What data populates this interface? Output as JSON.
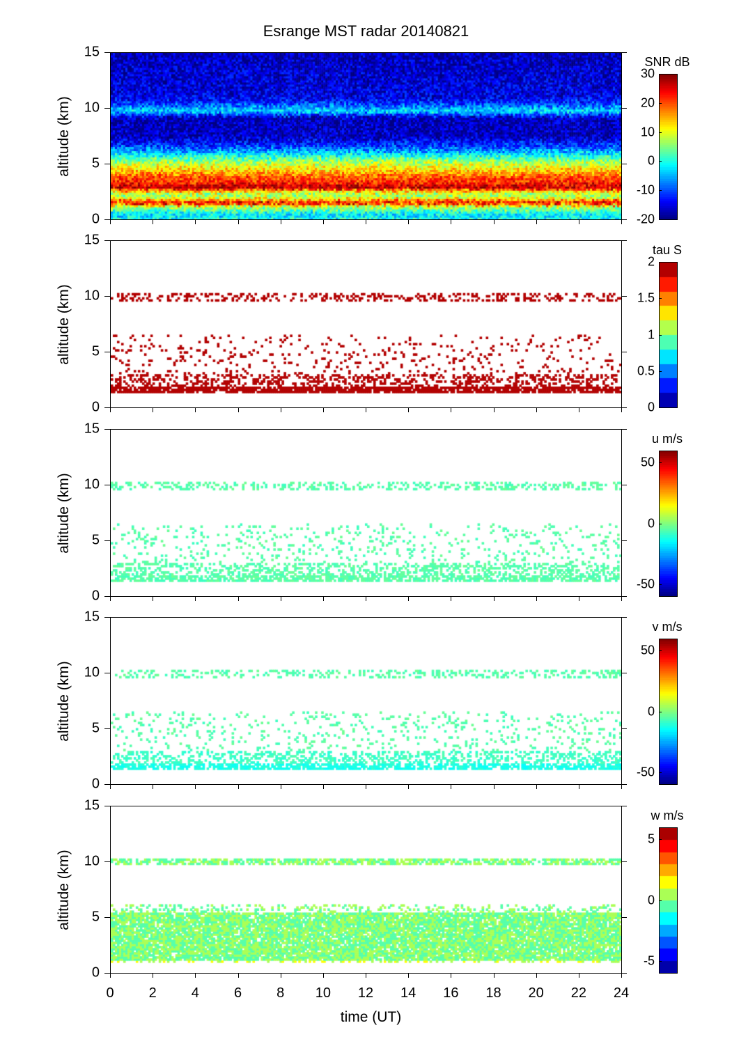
{
  "chart_data": {
    "type": "heatmap",
    "title": "Esrange MST radar 20140821",
    "xlabel": "time (UT)",
    "ylabel": "altitude (km)",
    "xlim": [
      0,
      24
    ],
    "ylim": [
      0,
      15
    ],
    "xticks": [
      0,
      2,
      4,
      6,
      8,
      10,
      12,
      14,
      16,
      18,
      20,
      22,
      24
    ],
    "yticks": [
      0,
      5,
      10,
      15
    ],
    "panels": [
      {
        "name": "snr",
        "colorbar_label": "SNR dB",
        "clim": [
          -20,
          30
        ],
        "cticks": [
          -20,
          -10,
          0,
          10,
          20,
          30
        ],
        "levels": 0,
        "fill": "full",
        "profile": [
          [
            0,
            0
          ],
          [
            0.4,
            -3
          ],
          [
            0.8,
            2
          ],
          [
            1.2,
            8
          ],
          [
            1.5,
            26
          ],
          [
            1.8,
            14
          ],
          [
            2.2,
            5
          ],
          [
            2.6,
            15
          ],
          [
            2.9,
            28
          ],
          [
            3.3,
            22
          ],
          [
            3.8,
            20
          ],
          [
            4.4,
            14
          ],
          [
            5.0,
            9
          ],
          [
            5.6,
            2
          ],
          [
            6.2,
            -6
          ],
          [
            6.8,
            -12
          ],
          [
            7.5,
            -17
          ],
          [
            9.2,
            -17
          ],
          [
            9.8,
            -2
          ],
          [
            10.3,
            -9
          ],
          [
            11,
            -15
          ],
          [
            15,
            -17
          ]
        ]
      },
      {
        "name": "tau",
        "colorbar_label": "tau S",
        "clim": [
          0,
          2
        ],
        "cticks": [
          0,
          0.5,
          1,
          1.5,
          2
        ],
        "levels": 10,
        "fill": "sparse",
        "bands": [
          [
            1.3,
            1.9,
            0.85,
            1.95
          ],
          [
            1.9,
            3.0,
            0.35,
            1.95
          ],
          [
            3.0,
            6.5,
            0.08,
            1.95
          ],
          [
            9.6,
            10.4,
            0.3,
            1.95
          ]
        ]
      },
      {
        "name": "u",
        "colorbar_label": "u m/s",
        "clim": [
          -60,
          60
        ],
        "cticks": [
          -50,
          0,
          50
        ],
        "levels": 0,
        "fill": "sparse",
        "bands": [
          [
            1.3,
            1.9,
            0.7,
            -5
          ],
          [
            1.9,
            3.0,
            0.4,
            -5
          ],
          [
            3.0,
            6.5,
            0.1,
            -5
          ],
          [
            9.6,
            10.4,
            0.3,
            -5
          ]
        ]
      },
      {
        "name": "v",
        "colorbar_label": "v m/s",
        "clim": [
          -60,
          60
        ],
        "cticks": [
          -50,
          0,
          50
        ],
        "levels": 0,
        "fill": "sparse",
        "bands": [
          [
            1.3,
            1.9,
            0.7,
            -12
          ],
          [
            1.9,
            3.0,
            0.4,
            -8
          ],
          [
            3.0,
            6.5,
            0.1,
            -5
          ],
          [
            9.6,
            10.4,
            0.3,
            -5
          ]
        ]
      },
      {
        "name": "w",
        "colorbar_label": "w m/s",
        "clim": [
          -6,
          6
        ],
        "cticks": [
          -5,
          0,
          5
        ],
        "levels": 12,
        "fill": "sparse",
        "bands": [
          [
            1.2,
            5.4,
            0.9,
            0
          ],
          [
            5.4,
            6.2,
            0.25,
            0
          ],
          [
            9.7,
            10.3,
            0.7,
            0
          ],
          [
            0.9,
            1.2,
            0.3,
            1
          ]
        ]
      }
    ]
  }
}
